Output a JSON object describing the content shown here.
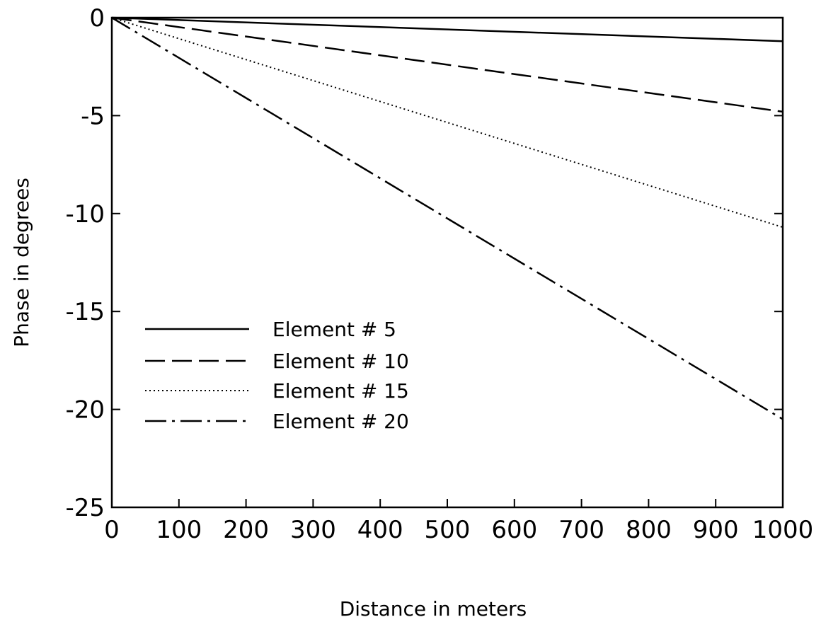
{
  "chart_data": {
    "type": "line",
    "title": "",
    "xlabel": "Distance in meters",
    "ylabel": "Phase in degrees",
    "xlim": [
      0,
      1000
    ],
    "ylim": [
      -25,
      0
    ],
    "xticks": [
      0,
      100,
      200,
      300,
      400,
      500,
      600,
      700,
      800,
      900,
      1000
    ],
    "yticks": [
      0,
      -5,
      -10,
      -15,
      -20,
      -25
    ],
    "xtick_labels": [
      "0",
      "100",
      "200",
      "300",
      "400",
      "500",
      "600",
      "700",
      "800",
      "900",
      "1000"
    ],
    "ytick_labels": [
      "0",
      "-5",
      "-10",
      "-15",
      "-20",
      "-25"
    ],
    "grid": false,
    "legend_position": "lower-left",
    "series": [
      {
        "name": "Element # 5",
        "style": "solid",
        "x": [
          0,
          1000
        ],
        "y": [
          0,
          -1.2
        ]
      },
      {
        "name": "Element # 10",
        "style": "dashed",
        "x": [
          0,
          1000
        ],
        "y": [
          0,
          -4.8
        ]
      },
      {
        "name": "Element # 15",
        "style": "dotted",
        "x": [
          0,
          1000
        ],
        "y": [
          0,
          -10.7
        ]
      },
      {
        "name": "Element # 20",
        "style": "dash-dot",
        "x": [
          0,
          1000
        ],
        "y": [
          0,
          -20.5
        ]
      }
    ]
  }
}
